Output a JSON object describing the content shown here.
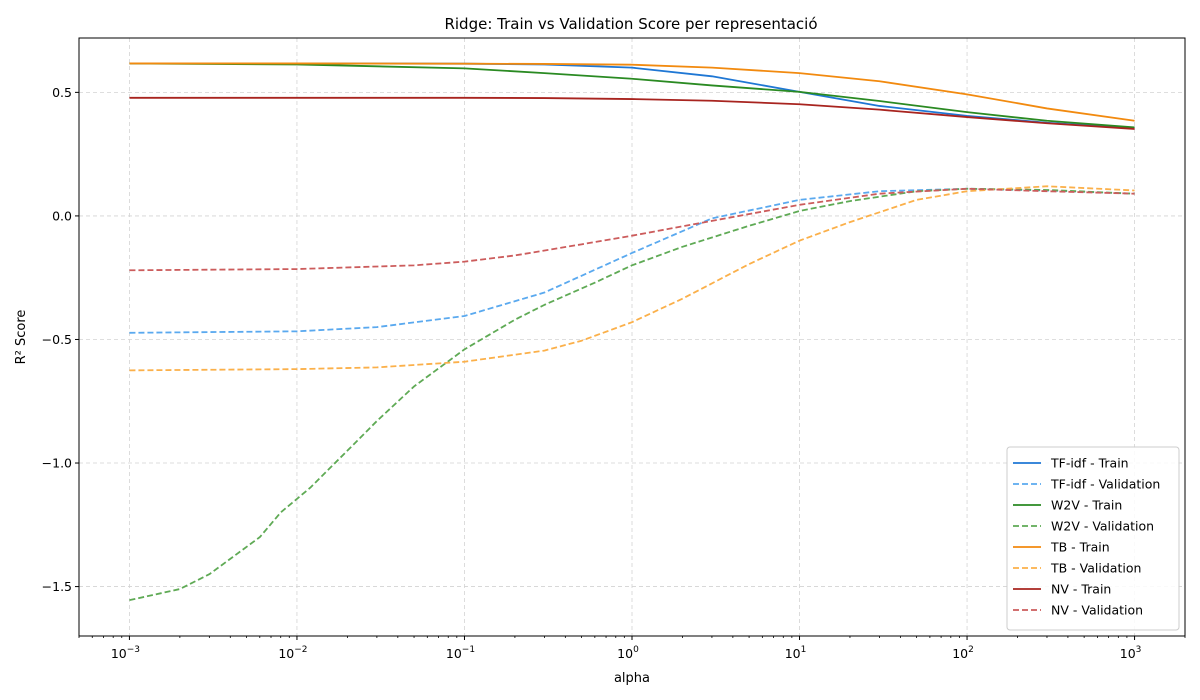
{
  "chart_data": {
    "type": "line",
    "title": "Ridge: Train vs Validation Score per representació",
    "xlabel": "alpha",
    "ylabel": "R² Score",
    "xscale": "log",
    "xlim": [
      0.0005,
      2000
    ],
    "ylim": [
      -1.7,
      0.72
    ],
    "x_ticks": [
      {
        "value": 0.001,
        "base": "10",
        "exp": "−3"
      },
      {
        "value": 0.01,
        "base": "10",
        "exp": "−2"
      },
      {
        "value": 0.1,
        "base": "10",
        "exp": "−1"
      },
      {
        "value": 1,
        "base": "10",
        "exp": "0"
      },
      {
        "value": 10,
        "base": "10",
        "exp": "1"
      },
      {
        "value": 100,
        "base": "10",
        "exp": "2"
      },
      {
        "value": 1000,
        "base": "10",
        "exp": "3"
      }
    ],
    "y_ticks": [
      {
        "value": 0.5,
        "label": "0.5"
      },
      {
        "value": 0.0,
        "label": "0.0"
      },
      {
        "value": -0.5,
        "label": "−0.5"
      },
      {
        "value": -1.0,
        "label": "−1.0"
      },
      {
        "value": -1.5,
        "label": "−1.5"
      }
    ],
    "grid": true,
    "legend_position": "bottom-right",
    "series": [
      {
        "name": "TF-idf - Train",
        "color": "#1f77d4",
        "dash": "solid",
        "x": [
          0.001,
          0.01,
          0.1,
          0.3,
          1,
          3,
          10,
          30,
          100,
          300,
          1000
        ],
        "y": [
          0.617,
          0.617,
          0.616,
          0.613,
          0.6,
          0.565,
          0.502,
          0.445,
          0.405,
          0.377,
          0.355
        ]
      },
      {
        "name": "TF-idf - Validation",
        "color": "#5aa9ef",
        "dash": "dashed",
        "x": [
          0.001,
          0.01,
          0.03,
          0.1,
          0.3,
          1,
          3,
          10,
          30,
          100,
          300,
          1000
        ],
        "y": [
          -0.473,
          -0.467,
          -0.45,
          -0.405,
          -0.31,
          -0.15,
          -0.01,
          0.065,
          0.1,
          0.11,
          0.103,
          0.09
        ]
      },
      {
        "name": "W2V - Train",
        "color": "#2a8a22",
        "dash": "solid",
        "x": [
          0.001,
          0.01,
          0.1,
          0.3,
          1,
          3,
          10,
          30,
          100,
          300,
          1000
        ],
        "y": [
          0.617,
          0.613,
          0.597,
          0.578,
          0.555,
          0.528,
          0.502,
          0.465,
          0.42,
          0.385,
          0.358
        ]
      },
      {
        "name": "W2V - Validation",
        "color": "#5faa55",
        "dash": "dashed",
        "x": [
          0.001,
          0.002,
          0.003,
          0.006,
          0.008,
          0.012,
          0.02,
          0.03,
          0.05,
          0.1,
          0.2,
          0.3,
          0.6,
          1,
          2,
          5,
          10,
          20,
          50,
          100,
          300,
          1000
        ],
        "y": [
          -1.555,
          -1.51,
          -1.45,
          -1.3,
          -1.2,
          -1.1,
          -0.95,
          -0.83,
          -0.69,
          -0.54,
          -0.42,
          -0.36,
          -0.27,
          -0.2,
          -0.125,
          -0.04,
          0.02,
          0.06,
          0.1,
          0.11,
          0.105,
          0.09
        ]
      },
      {
        "name": "TB - Train",
        "color": "#f28a0f",
        "dash": "solid",
        "x": [
          0.001,
          0.01,
          0.1,
          0.3,
          1,
          3,
          10,
          30,
          100,
          300,
          1000
        ],
        "y": [
          0.617,
          0.617,
          0.616,
          0.615,
          0.612,
          0.6,
          0.578,
          0.545,
          0.492,
          0.435,
          0.385
        ]
      },
      {
        "name": "TB - Validation",
        "color": "#fbb04a",
        "dash": "dashed",
        "x": [
          0.001,
          0.01,
          0.03,
          0.1,
          0.3,
          0.5,
          1,
          2,
          5,
          10,
          20,
          50,
          100,
          300,
          1000
        ],
        "y": [
          -0.625,
          -0.62,
          -0.613,
          -0.59,
          -0.545,
          -0.505,
          -0.43,
          -0.335,
          -0.195,
          -0.1,
          -0.025,
          0.065,
          0.1,
          0.12,
          0.103
        ]
      },
      {
        "name": "NV - Train",
        "color": "#a8241f",
        "dash": "solid",
        "x": [
          0.001,
          0.01,
          0.1,
          0.3,
          1,
          3,
          10,
          30,
          100,
          300,
          1000
        ],
        "y": [
          0.478,
          0.478,
          0.478,
          0.477,
          0.473,
          0.466,
          0.452,
          0.43,
          0.4,
          0.375,
          0.352
        ]
      },
      {
        "name": "NV - Validation",
        "color": "#cc5c5c",
        "dash": "dashed",
        "x": [
          0.001,
          0.01,
          0.05,
          0.1,
          0.2,
          0.5,
          1,
          3,
          10,
          30,
          100,
          300,
          1000
        ],
        "y": [
          -0.22,
          -0.215,
          -0.2,
          -0.185,
          -0.16,
          -0.115,
          -0.08,
          -0.02,
          0.045,
          0.09,
          0.11,
          0.1,
          0.09
        ]
      }
    ]
  }
}
